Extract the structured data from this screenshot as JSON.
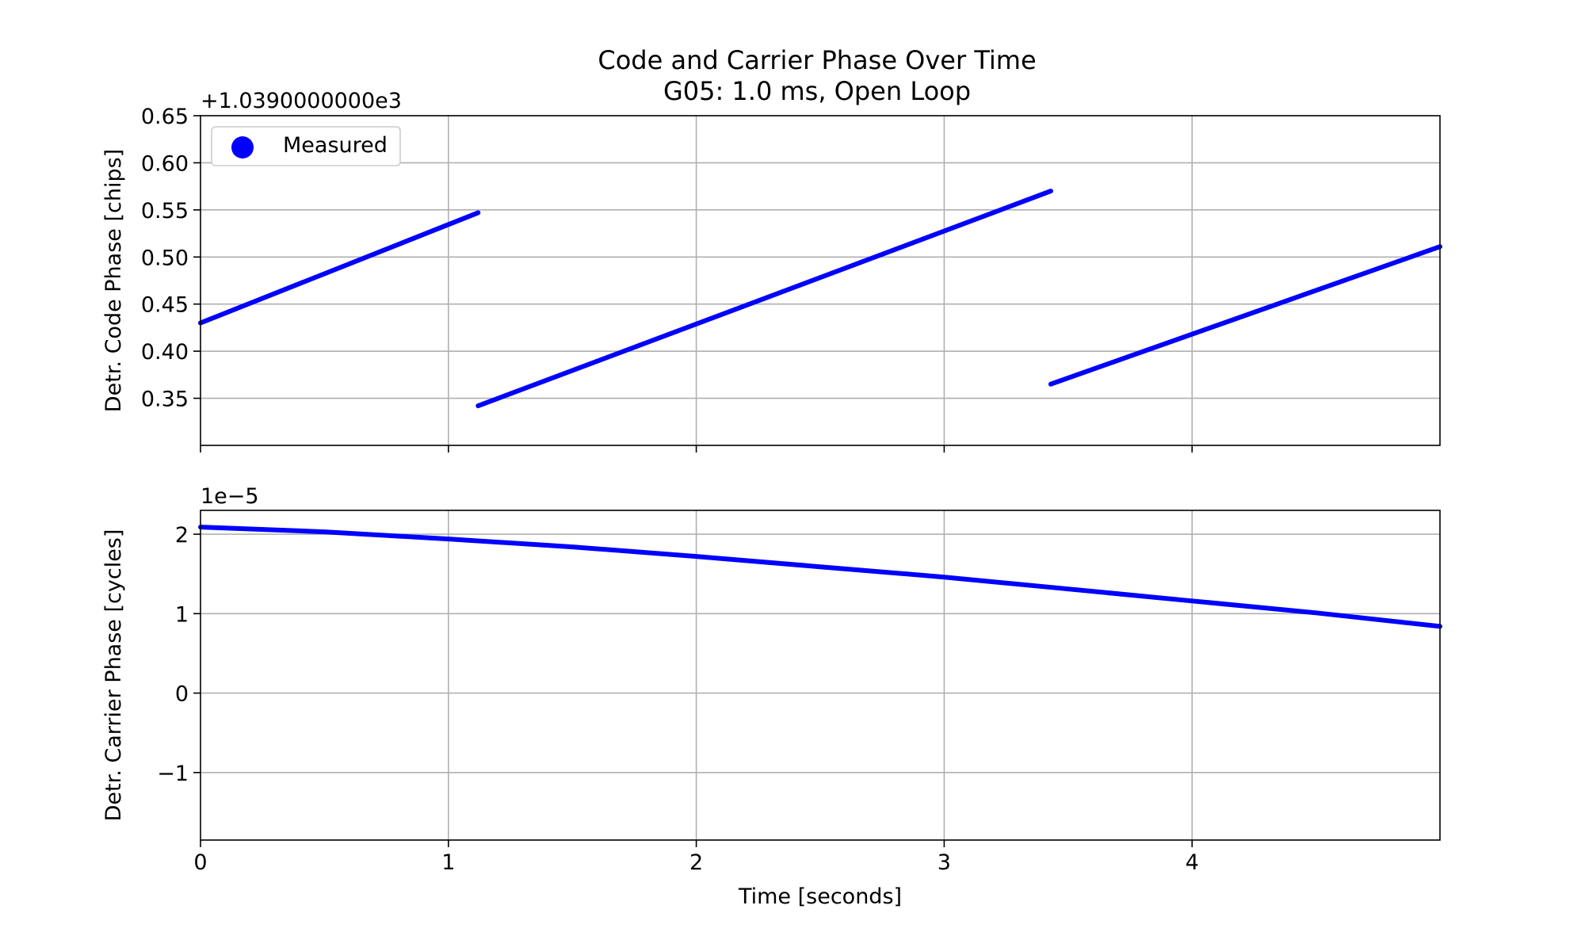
{
  "title": {
    "line1": "Code and Carrier Phase Over Time",
    "line2": "G05: 1.0 ms, Open Loop"
  },
  "colors": {
    "series": "#0000ff",
    "grid": "#b0b0b0",
    "axes": "#000000",
    "legend_border": "#cccccc"
  },
  "chart_data": [
    {
      "type": "line",
      "ylabel": "Detr. Code Phase [chips]",
      "offset_label": "+1.0390000000e3",
      "xlim": [
        0,
        5
      ],
      "ylim": [
        0.3,
        0.65
      ],
      "xticks": [
        0,
        1,
        2,
        3,
        4
      ],
      "xtick_labels": [
        "",
        "",
        "",
        "",
        ""
      ],
      "yticks": [
        0.35,
        0.4,
        0.45,
        0.5,
        0.55,
        0.6,
        0.65
      ],
      "ytick_labels": [
        "0.35",
        "0.40",
        "0.45",
        "0.50",
        "0.55",
        "0.60",
        "0.65"
      ],
      "grid": true,
      "legend": {
        "position": "upper-left",
        "entries": [
          "Measured"
        ],
        "marker": "circle"
      },
      "series": [
        {
          "name": "Measured",
          "segments": [
            {
              "x": [
                0.0,
                1.12
              ],
              "y": [
                0.43,
                0.547
              ]
            },
            {
              "x": [
                1.12,
                3.43
              ],
              "y": [
                0.342,
                0.57
              ]
            },
            {
              "x": [
                3.43,
                5.0
              ],
              "y": [
                0.365,
                0.511
              ]
            }
          ]
        }
      ]
    },
    {
      "type": "line",
      "ylabel": "Detr. Carrier Phase [cycles]",
      "offset_label": "1e−5",
      "xlabel": "Time [seconds]",
      "xlim": [
        0,
        5
      ],
      "ylim": [
        -1.85,
        2.3
      ],
      "xticks": [
        0,
        1,
        2,
        3,
        4
      ],
      "xtick_labels": [
        "0",
        "1",
        "2",
        "3",
        "4"
      ],
      "yticks": [
        -1,
        0,
        1,
        2
      ],
      "ytick_labels": [
        "−1",
        "0",
        "1",
        "2"
      ],
      "grid": true,
      "series": [
        {
          "name": "Measured",
          "x": [
            0,
            0.5,
            1.0,
            1.5,
            2.0,
            2.5,
            3.0,
            3.5,
            4.0,
            4.5,
            5.0
          ],
          "y": [
            2.09,
            2.03,
            1.94,
            1.84,
            1.72,
            1.59,
            1.46,
            1.31,
            1.16,
            1.01,
            0.84
          ]
        }
      ]
    }
  ]
}
